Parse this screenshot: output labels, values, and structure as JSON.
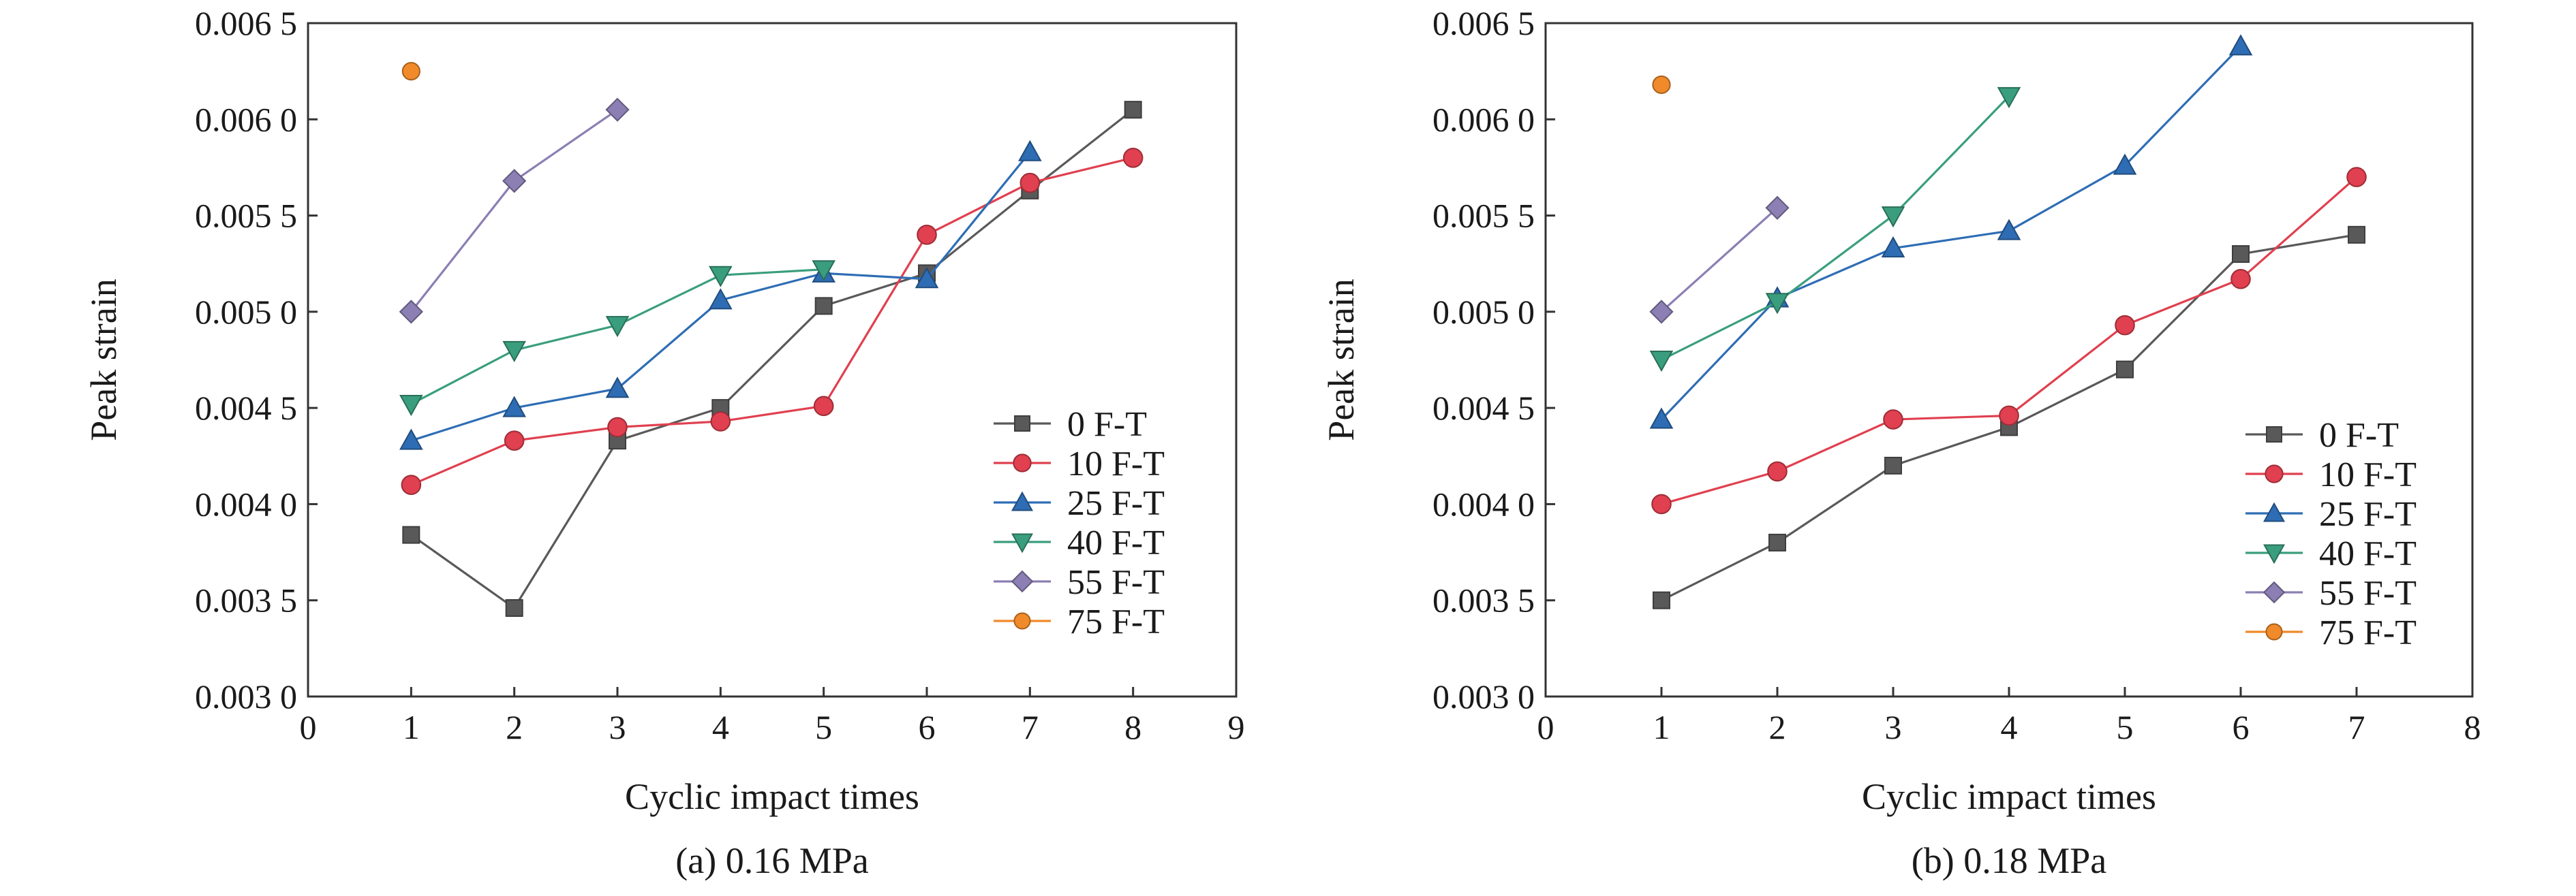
{
  "chart_data": [
    {
      "type": "line",
      "caption": "(a) 0.16 MPa",
      "xlabel": "Cyclic impact times",
      "ylabel": "Peak strain",
      "xlim": [
        0,
        9
      ],
      "ylim": [
        0.003,
        0.0065
      ],
      "xticks": [
        "0",
        "1",
        "2",
        "3",
        "4",
        "5",
        "6",
        "7",
        "8",
        "9"
      ],
      "yticks": [
        {
          "value": 0.003,
          "label": "0.003 0"
        },
        {
          "value": 0.0035,
          "label": "0.003 5"
        },
        {
          "value": 0.004,
          "label": "0.004 0"
        },
        {
          "value": 0.0045,
          "label": "0.004 5"
        },
        {
          "value": 0.005,
          "label": "0.005 0"
        },
        {
          "value": 0.0055,
          "label": "0.005 5"
        },
        {
          "value": 0.006,
          "label": "0.006 0"
        },
        {
          "value": 0.0065,
          "label": "0.006 5"
        }
      ],
      "legend_position": "bottom-right",
      "series": [
        {
          "name": "0  F-T",
          "marker": "square",
          "color": "#595959",
          "x": [
            1,
            2,
            3,
            4,
            5,
            6,
            7,
            8
          ],
          "y": [
            0.00384,
            0.00346,
            0.00433,
            0.0045,
            0.00503,
            0.0052,
            0.00563,
            0.00605
          ]
        },
        {
          "name": "10 F-T",
          "marker": "circle",
          "color": "#e0404f",
          "x": [
            1,
            2,
            3,
            4,
            5,
            6,
            7,
            8
          ],
          "y": [
            0.0041,
            0.00433,
            0.0044,
            0.00443,
            0.00451,
            0.0054,
            0.00567,
            0.0058
          ]
        },
        {
          "name": "25 F-T",
          "marker": "triangle-up",
          "color": "#2e6db4",
          "x": [
            1,
            2,
            3,
            4,
            5,
            6,
            7
          ],
          "y": [
            0.00433,
            0.0045,
            0.0046,
            0.00506,
            0.0052,
            0.00517,
            0.00583
          ]
        },
        {
          "name": "40 F-T",
          "marker": "triangle-down",
          "color": "#3a9e7e",
          "x": [
            1,
            2,
            3,
            4,
            5
          ],
          "y": [
            0.00452,
            0.0048,
            0.00493,
            0.00519,
            0.00522
          ]
        },
        {
          "name": "55 F-T",
          "marker": "diamond",
          "color": "#8c7fb3",
          "x": [
            1,
            2,
            3
          ],
          "y": [
            0.005,
            0.00568,
            0.00605
          ]
        },
        {
          "name": "75 F-T",
          "marker": "sphere",
          "color": "#f08a2a",
          "x": [
            1
          ],
          "y": [
            0.00625
          ]
        }
      ]
    },
    {
      "type": "line",
      "caption": "(b) 0.18 MPa",
      "xlabel": "Cyclic impact times",
      "ylabel": "Peak strain",
      "xlim": [
        0,
        8
      ],
      "ylim": [
        0.003,
        0.0065
      ],
      "xticks": [
        "0",
        "1",
        "2",
        "3",
        "4",
        "5",
        "6",
        "7",
        "8"
      ],
      "yticks": [
        {
          "value": 0.003,
          "label": "0.003 0"
        },
        {
          "value": 0.0035,
          "label": "0.003 5"
        },
        {
          "value": 0.004,
          "label": "0.004 0"
        },
        {
          "value": 0.0045,
          "label": "0.004 5"
        },
        {
          "value": 0.005,
          "label": "0.005 0"
        },
        {
          "value": 0.0055,
          "label": "0.005 5"
        },
        {
          "value": 0.006,
          "label": "0.006 0"
        },
        {
          "value": 0.0065,
          "label": "0.006 5"
        }
      ],
      "legend_position": "bottom-right",
      "series": [
        {
          "name": "0 F-T",
          "marker": "square",
          "color": "#595959",
          "x": [
            1,
            2,
            3,
            4,
            5,
            6,
            7
          ],
          "y": [
            0.0035,
            0.0038,
            0.0042,
            0.0044,
            0.0047,
            0.0053,
            0.0054
          ]
        },
        {
          "name": "10 F-T",
          "marker": "circle",
          "color": "#e0404f",
          "x": [
            1,
            2,
            3,
            4,
            5,
            6,
            7
          ],
          "y": [
            0.004,
            0.00417,
            0.00444,
            0.00446,
            0.00493,
            0.00517,
            0.0057
          ]
        },
        {
          "name": "25 F-T",
          "marker": "triangle-up",
          "color": "#2e6db4",
          "x": [
            1,
            2,
            3,
            4,
            5,
            6
          ],
          "y": [
            0.00444,
            0.00507,
            0.00533,
            0.00542,
            0.00576,
            0.00638
          ]
        },
        {
          "name": "40 F-T",
          "marker": "triangle-down",
          "color": "#3a9e7e",
          "x": [
            1,
            2,
            3,
            4
          ],
          "y": [
            0.00475,
            0.00505,
            0.0055,
            0.00612
          ]
        },
        {
          "name": "55 F-T",
          "marker": "diamond",
          "color": "#8c7fb3",
          "x": [
            1,
            2
          ],
          "y": [
            0.005,
            0.00554
          ]
        },
        {
          "name": "75 F-T",
          "marker": "sphere",
          "color": "#f08a2a",
          "x": [
            1
          ],
          "y": [
            0.00618
          ]
        }
      ]
    }
  ]
}
